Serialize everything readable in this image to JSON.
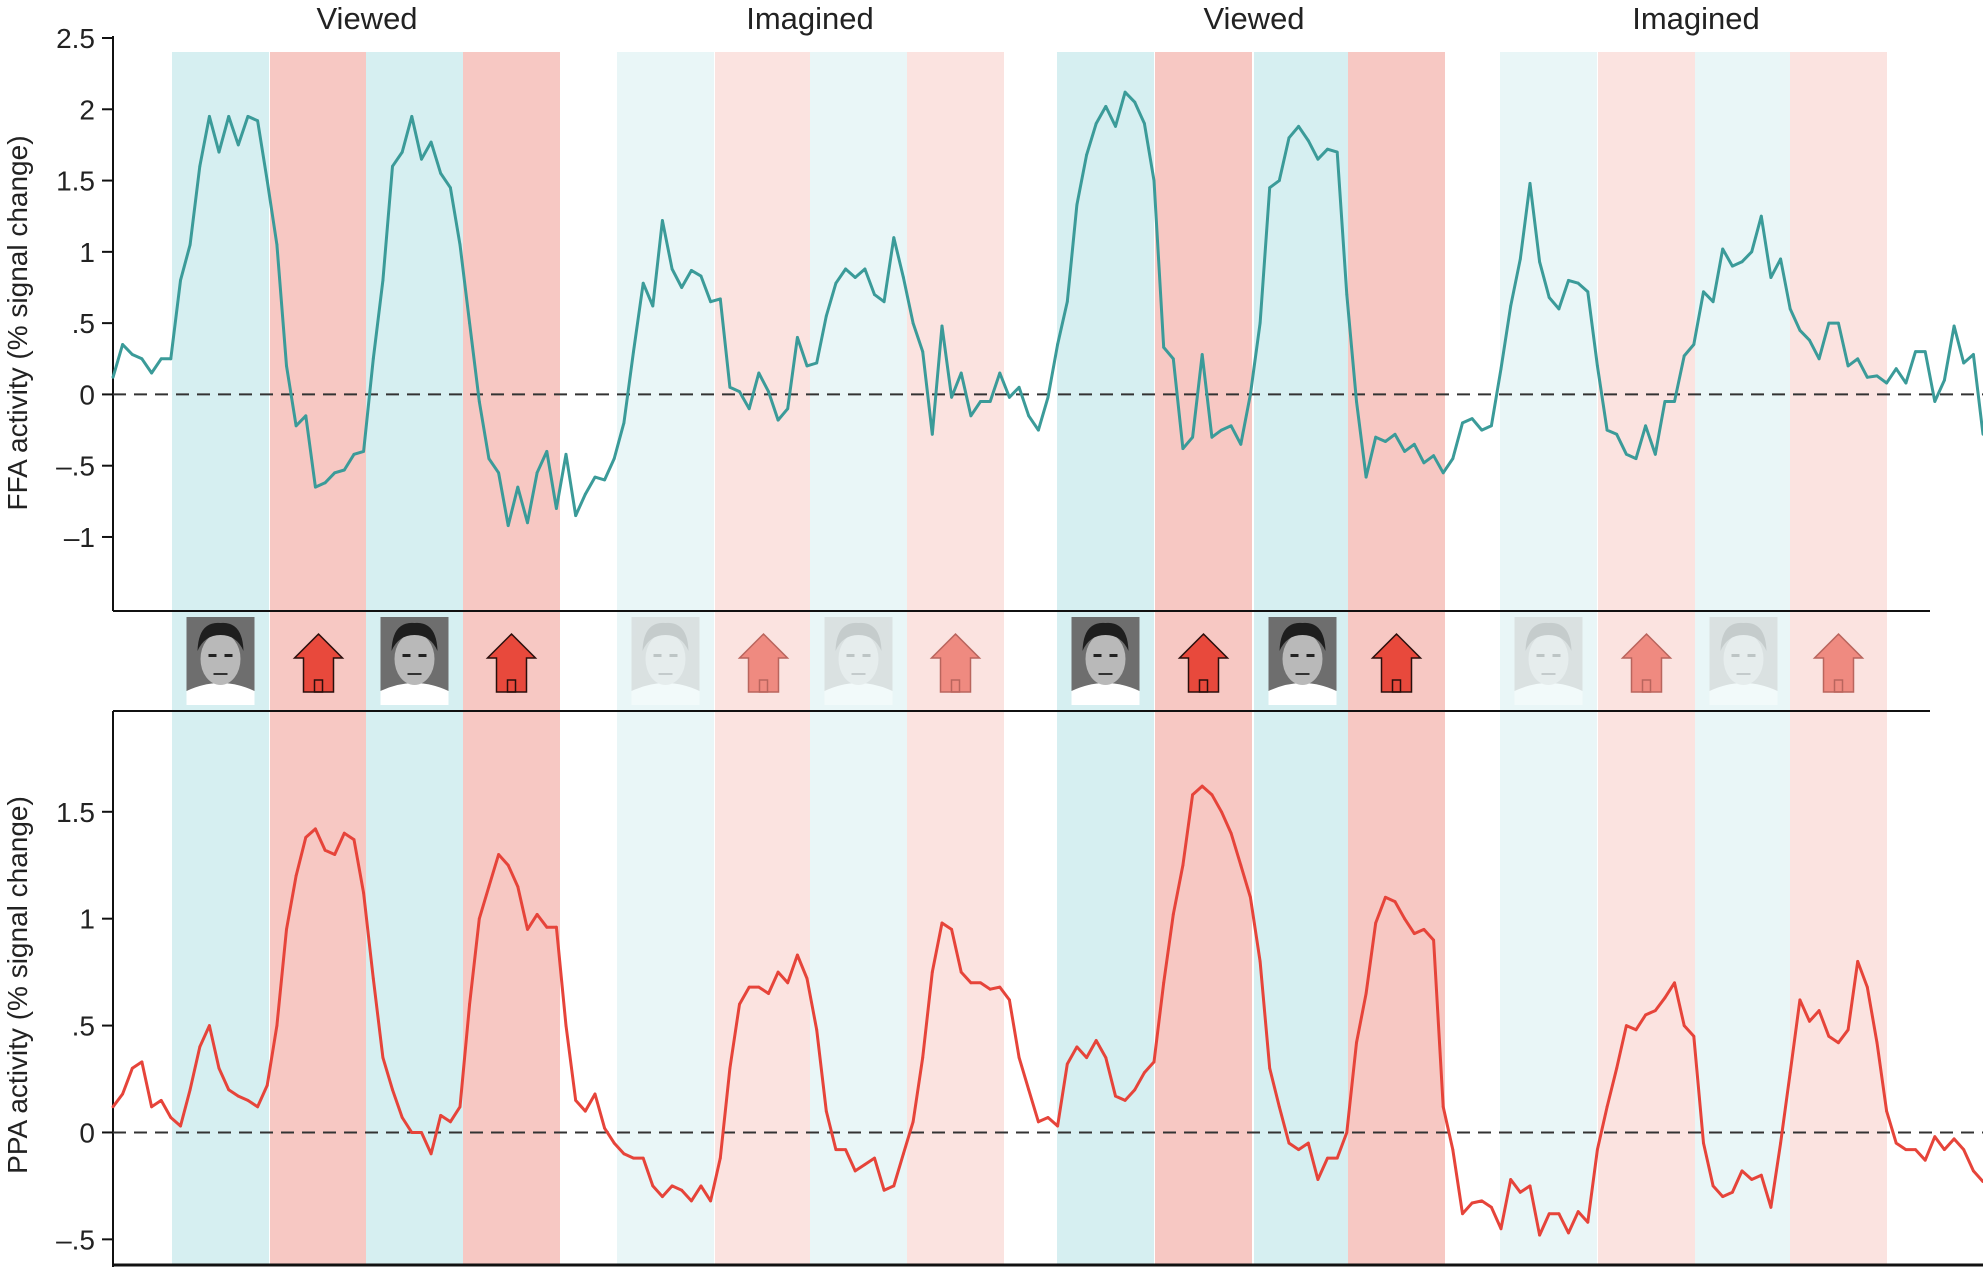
{
  "colors": {
    "face_band_strong": "#d6eff1",
    "face_band_light": "#e9f6f7",
    "house_band_strong": "#f7c8c3",
    "house_band_light": "#fbe3e0",
    "ffa_line": "#3b9b99",
    "ppa_line": "#e6443a",
    "house_icon_strong": "#e8493c",
    "house_icon_light": "#ef8a80"
  },
  "icons": {
    "face": "face-photo-icon",
    "house": "house-icon"
  },
  "conditions": [
    "Viewed",
    "Imagined",
    "Viewed",
    "Imagined"
  ],
  "stimulus_sequence": [
    {
      "type": "face",
      "condition": "viewed"
    },
    {
      "type": "house",
      "condition": "viewed"
    },
    {
      "type": "face",
      "condition": "viewed"
    },
    {
      "type": "house",
      "condition": "viewed"
    },
    {
      "type": "face",
      "condition": "imagined"
    },
    {
      "type": "house",
      "condition": "imagined"
    },
    {
      "type": "face",
      "condition": "imagined"
    },
    {
      "type": "house",
      "condition": "imagined"
    },
    {
      "type": "face",
      "condition": "viewed"
    },
    {
      "type": "house",
      "condition": "viewed"
    },
    {
      "type": "face",
      "condition": "viewed"
    },
    {
      "type": "house",
      "condition": "viewed"
    },
    {
      "type": "face",
      "condition": "imagined"
    },
    {
      "type": "house",
      "condition": "imagined"
    },
    {
      "type": "face",
      "condition": "imagined"
    },
    {
      "type": "house",
      "condition": "imagined"
    }
  ],
  "chart_data": [
    {
      "type": "line",
      "title": "",
      "ylabel": "FFA activity (% signal change)",
      "xlabel": "",
      "ylim": [
        -1.4,
        2.5
      ],
      "yticks": [
        2.5,
        2,
        1.5,
        1,
        0.5,
        0,
        -0.5,
        -1
      ],
      "ytick_labels": [
        "2.5",
        "2",
        "1.5",
        "1",
        ".5",
        "0",
        "–.5",
        "–1"
      ],
      "baseline": 0,
      "series": [
        {
          "values": [
            0.12,
            0.35,
            0.28,
            0.25,
            0.15,
            0.25,
            0.25,
            0.8,
            1.05,
            1.6,
            1.95,
            1.7,
            1.95,
            1.75,
            1.95,
            1.92,
            1.5,
            1.05,
            0.2,
            -0.22,
            -0.15,
            -0.65,
            -0.62,
            -0.55,
            -0.53,
            -0.42,
            -0.4,
            0.25,
            0.8,
            1.6,
            1.7,
            1.95,
            1.65,
            1.77,
            1.55,
            1.45,
            1.05,
            0.5,
            -0.05,
            -0.45,
            -0.55,
            -0.92,
            -0.65,
            -0.9,
            -0.55,
            -0.4,
            -0.8,
            -0.42,
            -0.85,
            -0.7,
            -0.58,
            -0.6,
            -0.45,
            -0.2,
            0.3,
            0.78,
            0.62,
            1.22,
            0.88,
            0.75,
            0.87,
            0.83,
            0.65,
            0.67,
            0.05,
            0.02,
            -0.1,
            0.15,
            0.02,
            -0.18,
            -0.1,
            0.4,
            0.2,
            0.22,
            0.55,
            0.78,
            0.88,
            0.82,
            0.88,
            0.7,
            0.65,
            1.1,
            0.82,
            0.5,
            0.3,
            -0.28,
            0.48,
            -0.02,
            0.15,
            -0.15,
            -0.05,
            -0.05,
            0.15,
            -0.02,
            0.05,
            -0.15,
            -0.25,
            -0.02,
            0.35,
            0.65,
            1.33,
            1.68,
            1.9,
            2.02,
            1.88,
            2.12,
            2.05,
            1.9,
            1.5,
            0.33,
            0.25,
            -0.38,
            -0.3,
            0.28,
            -0.3,
            -0.25,
            -0.22,
            -0.35,
            0.0,
            0.5,
            1.45,
            1.5,
            1.8,
            1.88,
            1.78,
            1.65,
            1.72,
            1.7,
            0.7,
            -0.05,
            -0.58,
            -0.3,
            -0.33,
            -0.28,
            -0.4,
            -0.35,
            -0.48,
            -0.43,
            -0.55,
            -0.45,
            -0.2,
            -0.17,
            -0.25,
            -0.22,
            0.18,
            0.62,
            0.95,
            1.48,
            0.93,
            0.68,
            0.6,
            0.8,
            0.78,
            0.72,
            0.2,
            -0.25,
            -0.28,
            -0.42,
            -0.45,
            -0.22,
            -0.42,
            -0.05,
            -0.05,
            0.27,
            0.35,
            0.72,
            0.65,
            1.02,
            0.9,
            0.93,
            1.0,
            1.25,
            0.82,
            0.95,
            0.6,
            0.45,
            0.38,
            0.25,
            0.5,
            0.5,
            0.2,
            0.25,
            0.12,
            0.13,
            0.08,
            0.18,
            0.08,
            0.3,
            0.3,
            -0.05,
            0.1,
            0.48,
            0.22,
            0.28,
            -0.28
          ]
        }
      ]
    },
    {
      "type": "line",
      "title": "",
      "ylabel": "PPA activity (% signal change)",
      "xlabel": "",
      "ylim": [
        -0.62,
        1.92
      ],
      "yticks": [
        1.5,
        1,
        0.5,
        0,
        -0.5
      ],
      "ytick_labels": [
        "1.5",
        "1",
        ".5",
        "0",
        "–.5"
      ],
      "baseline": 0,
      "series": [
        {
          "values": [
            0.12,
            0.18,
            0.3,
            0.33,
            0.12,
            0.15,
            0.07,
            0.03,
            0.2,
            0.4,
            0.5,
            0.3,
            0.2,
            0.17,
            0.15,
            0.12,
            0.22,
            0.5,
            0.95,
            1.2,
            1.38,
            1.42,
            1.32,
            1.3,
            1.4,
            1.37,
            1.12,
            0.72,
            0.35,
            0.2,
            0.07,
            0.0,
            0.0,
            -0.1,
            0.08,
            0.05,
            0.12,
            0.6,
            1.0,
            1.15,
            1.3,
            1.25,
            1.15,
            0.95,
            1.02,
            0.96,
            0.96,
            0.5,
            0.15,
            0.1,
            0.18,
            0.02,
            -0.05,
            -0.1,
            -0.12,
            -0.12,
            -0.25,
            -0.3,
            -0.25,
            -0.27,
            -0.32,
            -0.25,
            -0.32,
            -0.12,
            0.3,
            0.6,
            0.68,
            0.68,
            0.65,
            0.75,
            0.7,
            0.83,
            0.72,
            0.48,
            0.1,
            -0.08,
            -0.08,
            -0.18,
            -0.15,
            -0.12,
            -0.27,
            -0.25,
            -0.1,
            0.05,
            0.35,
            0.75,
            0.98,
            0.95,
            0.75,
            0.7,
            0.7,
            0.67,
            0.68,
            0.62,
            0.35,
            0.2,
            0.05,
            0.07,
            0.03,
            0.32,
            0.4,
            0.35,
            0.43,
            0.35,
            0.17,
            0.15,
            0.2,
            0.28,
            0.33,
            0.7,
            1.02,
            1.25,
            1.58,
            1.62,
            1.58,
            1.5,
            1.4,
            1.25,
            1.1,
            0.8,
            0.3,
            0.12,
            -0.05,
            -0.08,
            -0.05,
            -0.22,
            -0.12,
            -0.12,
            0.0,
            0.42,
            0.65,
            0.98,
            1.1,
            1.08,
            1.0,
            0.93,
            0.95,
            0.9,
            0.12,
            -0.08,
            -0.38,
            -0.33,
            -0.32,
            -0.35,
            -0.45,
            -0.22,
            -0.28,
            -0.25,
            -0.48,
            -0.38,
            -0.38,
            -0.47,
            -0.37,
            -0.42,
            -0.08,
            0.12,
            0.3,
            0.5,
            0.48,
            0.55,
            0.57,
            0.63,
            0.7,
            0.5,
            0.45,
            -0.05,
            -0.25,
            -0.3,
            -0.28,
            -0.18,
            -0.22,
            -0.2,
            -0.35,
            -0.05,
            0.28,
            0.62,
            0.52,
            0.57,
            0.45,
            0.42,
            0.48,
            0.8,
            0.68,
            0.42,
            0.1,
            -0.05,
            -0.08,
            -0.08,
            -0.13,
            -0.02,
            -0.08,
            -0.03,
            -0.08,
            -0.18,
            -0.23
          ]
        }
      ]
    }
  ]
}
